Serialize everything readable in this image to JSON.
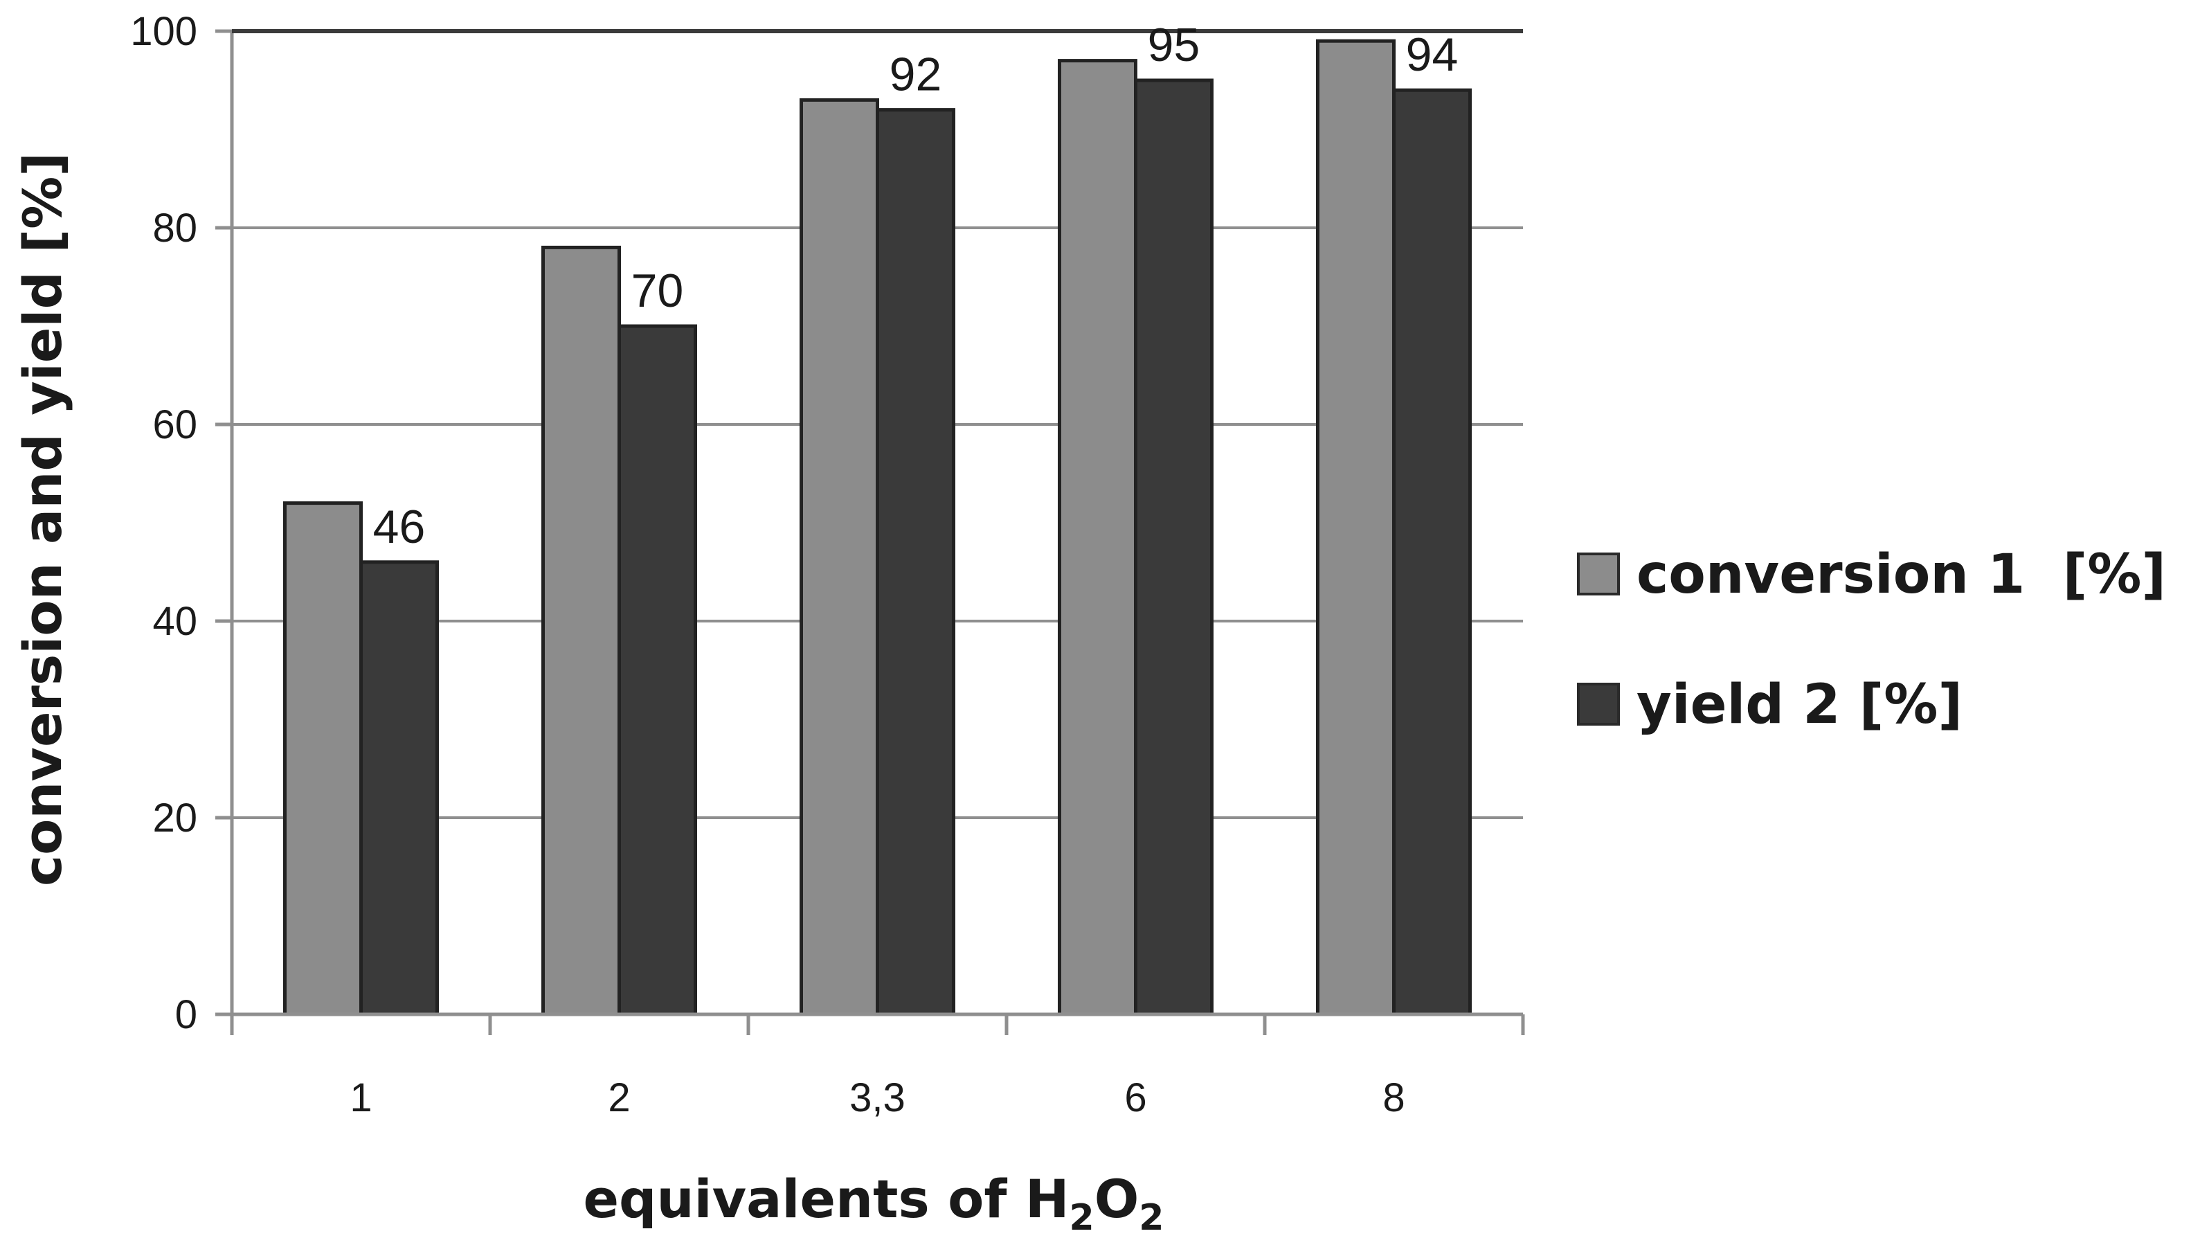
{
  "chart_data": {
    "type": "bar",
    "categories": [
      "1",
      "2",
      "3,3",
      "6",
      "8"
    ],
    "series": [
      {
        "name": "conversion 1  [%]",
        "values": [
          52,
          78,
          93,
          97,
          99
        ],
        "color": "#8c8c8c"
      },
      {
        "name": "yield 2 [%]",
        "values": [
          46,
          70,
          92,
          95,
          94
        ],
        "color": "#3a3a3a"
      }
    ],
    "data_labels": [
      "46",
      "70",
      "92",
      "95",
      "94"
    ],
    "xlabel_parts": {
      "main": "equivalents of H",
      "sub1": "2",
      "mid": "O",
      "sub2": "2"
    },
    "ylabel": "conversion and yield [%]",
    "ylim": [
      0,
      100
    ],
    "yticks": [
      "0",
      "20",
      "40",
      "60",
      "80",
      "100"
    ],
    "grid": true,
    "legend_position": "right"
  }
}
